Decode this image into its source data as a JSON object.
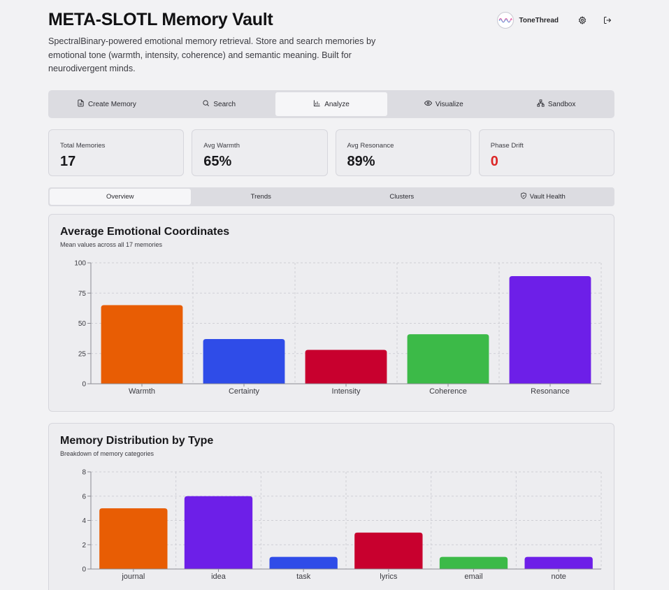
{
  "header": {
    "title": "META-SLOTL Memory Vault",
    "description": "SpectralBinary-powered emotional memory retrieval. Store and search memories by emotional tone (warmth, intensity, coherence) and semantic meaning. Built for neurodivergent minds.",
    "username": "ToneThread",
    "avatar_icon": "tonethread-logo",
    "settings_icon": "gear-icon",
    "logout_icon": "logout-icon"
  },
  "tabs": [
    {
      "label": "Create Memory",
      "icon": "document-icon"
    },
    {
      "label": "Search",
      "icon": "search-icon"
    },
    {
      "label": "Analyze",
      "icon": "bar-chart-icon",
      "active": true
    },
    {
      "label": "Visualize",
      "icon": "eye-icon"
    },
    {
      "label": "Sandbox",
      "icon": "network-icon"
    }
  ],
  "stats": [
    {
      "label": "Total Memories",
      "value": "17"
    },
    {
      "label": "Avg Warmth",
      "value": "65%"
    },
    {
      "label": "Avg Resonance",
      "value": "89%"
    },
    {
      "label": "Phase Drift",
      "value": "0",
      "color": "#dc2626"
    }
  ],
  "subtabs": [
    {
      "label": "Overview",
      "active": true
    },
    {
      "label": "Trends"
    },
    {
      "label": "Clusters"
    },
    {
      "label": "Vault Health",
      "icon": "shield-icon"
    }
  ],
  "cards": {
    "coords": {
      "title": "Average Emotional Coordinates",
      "subtitle": "Mean values across all 17 memories"
    },
    "types": {
      "title": "Memory Distribution by Type",
      "subtitle": "Breakdown of memory categories"
    }
  },
  "chart_data": [
    {
      "type": "bar",
      "categories": [
        "Warmth",
        "Certainty",
        "Intensity",
        "Coherence",
        "Resonance"
      ],
      "values": [
        65,
        37,
        28,
        41,
        89
      ],
      "colors": [
        "#e85d04",
        "#2f4ce8",
        "#c8002e",
        "#3cba48",
        "#6d1fe8"
      ],
      "yticks": [
        0,
        25,
        50,
        75,
        100
      ],
      "ylim": [
        0,
        100
      ],
      "grid": true
    },
    {
      "type": "bar",
      "categories": [
        "journal",
        "idea",
        "task",
        "lyrics",
        "email",
        "note"
      ],
      "values": [
        5,
        6,
        1,
        3,
        1,
        1
      ],
      "colors": [
        "#e85d04",
        "#6d1fe8",
        "#2f4ce8",
        "#c8002e",
        "#3cba48",
        "#6d1fe8"
      ],
      "yticks": [
        0,
        2,
        4,
        6,
        8
      ],
      "ylim": [
        0,
        8
      ],
      "grid": true
    }
  ]
}
